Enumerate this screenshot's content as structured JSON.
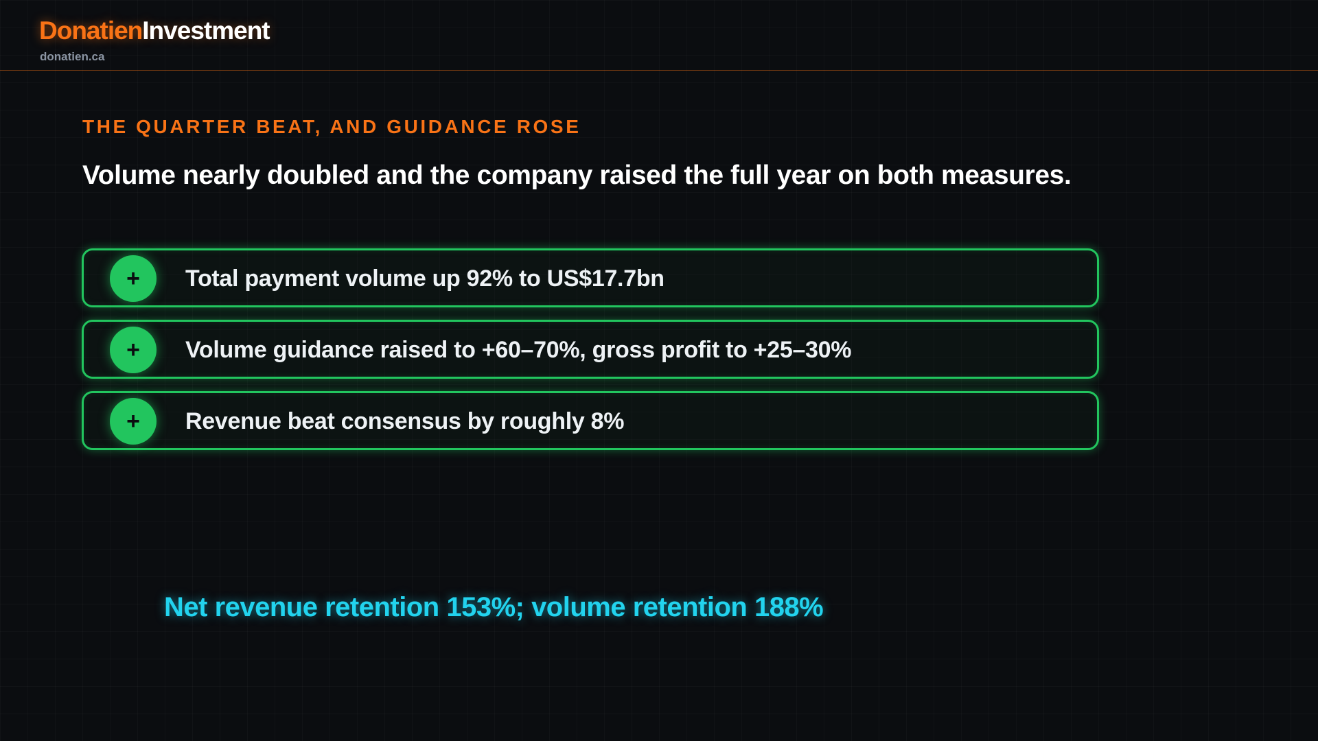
{
  "header": {
    "brand_part1": "Donatien",
    "brand_part2": "Investment",
    "site": "donatien.ca"
  },
  "slide": {
    "kicker": "THE QUARTER BEAT, AND GUIDANCE ROSE",
    "headline": "Volume nearly doubled and the company raised the full year on both measures.",
    "items": [
      {
        "icon": "plus-icon",
        "symbol": "+",
        "text": "Total payment volume up 92% to US$17.7bn"
      },
      {
        "icon": "plus-icon",
        "symbol": "+",
        "text": "Volume guidance raised to +60–70%, gross profit to +25–30%"
      },
      {
        "icon": "plus-icon",
        "symbol": "+",
        "text": "Revenue beat consensus by roughly 8%"
      }
    ],
    "callout": "Net revenue retention 153%; volume retention 188%"
  },
  "colors": {
    "background": "#0b0d10",
    "accent_orange": "#f97316",
    "positive_green": "#22c55e",
    "callout_cyan": "#22d3ee",
    "muted_text": "#8b95a3"
  }
}
